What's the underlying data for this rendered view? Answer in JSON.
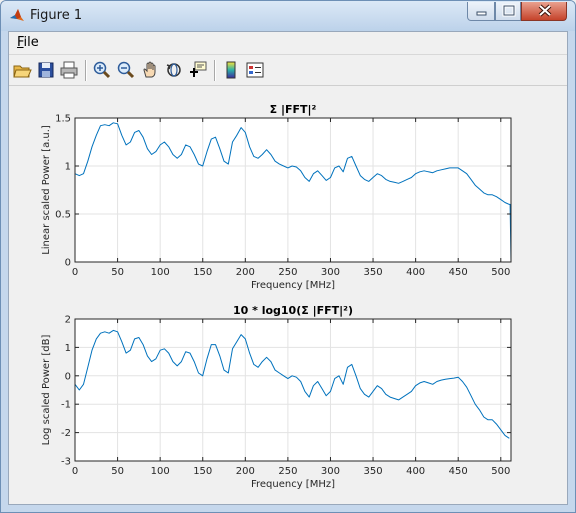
{
  "window": {
    "title": "Figure 1"
  },
  "menu": {
    "file_label": "File"
  },
  "toolbar": {
    "icons": [
      "open-file-icon",
      "save-icon",
      "print-icon",
      "zoom-in-icon",
      "zoom-out-icon",
      "pan-hand-icon",
      "rotate-3d-icon",
      "data-cursor-icon",
      "insert-colorbar-icon",
      "insert-legend-icon"
    ]
  },
  "colors": {
    "line": "#0072bd",
    "titlebar": "#c5d7ec",
    "close": "#c5432b"
  },
  "chart_data": [
    {
      "type": "line",
      "title": "Σ |FFT|²",
      "xlabel": "Frequency [MHz]",
      "ylabel": "Linear scaled Power [a.u.]",
      "xlim": [
        0,
        512
      ],
      "ylim": [
        0,
        1.5
      ],
      "xticks": [
        0,
        50,
        100,
        150,
        200,
        250,
        300,
        350,
        400,
        450,
        500
      ],
      "yticks": [
        0,
        0.5,
        1,
        1.5
      ],
      "ytick_labels": [
        "0",
        "0.5",
        "1",
        "1.5"
      ],
      "grid": true,
      "x": [
        0,
        5,
        10,
        15,
        20,
        25,
        30,
        35,
        40,
        45,
        50,
        55,
        60,
        65,
        70,
        75,
        80,
        85,
        90,
        95,
        100,
        105,
        110,
        115,
        120,
        125,
        130,
        135,
        140,
        145,
        150,
        155,
        160,
        165,
        170,
        175,
        180,
        185,
        190,
        195,
        200,
        205,
        210,
        215,
        220,
        225,
        230,
        235,
        240,
        245,
        250,
        255,
        260,
        265,
        270,
        275,
        280,
        285,
        290,
        295,
        300,
        305,
        310,
        315,
        320,
        325,
        330,
        335,
        340,
        345,
        350,
        355,
        360,
        365,
        370,
        375,
        380,
        385,
        390,
        395,
        400,
        405,
        410,
        415,
        420,
        425,
        430,
        435,
        440,
        445,
        450,
        455,
        460,
        465,
        470,
        475,
        480,
        485,
        490,
        495,
        500,
        505,
        510,
        511,
        512
      ],
      "values": [
        0.92,
        0.9,
        0.92,
        1.05,
        1.2,
        1.32,
        1.42,
        1.43,
        1.42,
        1.45,
        1.44,
        1.32,
        1.22,
        1.25,
        1.35,
        1.37,
        1.3,
        1.18,
        1.12,
        1.15,
        1.22,
        1.25,
        1.2,
        1.12,
        1.08,
        1.12,
        1.22,
        1.2,
        1.12,
        1.02,
        1.0,
        1.15,
        1.28,
        1.3,
        1.18,
        1.05,
        1.02,
        1.25,
        1.32,
        1.4,
        1.35,
        1.2,
        1.1,
        1.08,
        1.12,
        1.17,
        1.12,
        1.05,
        1.02,
        1.0,
        0.98,
        1.0,
        0.99,
        0.95,
        0.88,
        0.84,
        0.92,
        0.95,
        0.9,
        0.85,
        0.88,
        0.98,
        1.0,
        0.94,
        1.08,
        1.1,
        1.0,
        0.9,
        0.86,
        0.84,
        0.88,
        0.92,
        0.9,
        0.86,
        0.84,
        0.83,
        0.82,
        0.84,
        0.86,
        0.88,
        0.92,
        0.94,
        0.95,
        0.94,
        0.93,
        0.95,
        0.96,
        0.97,
        0.98,
        0.98,
        0.98,
        0.95,
        0.92,
        0.86,
        0.8,
        0.76,
        0.72,
        0.7,
        0.7,
        0.68,
        0.65,
        0.62,
        0.6,
        0.6,
        0.0
      ]
    },
    {
      "type": "line",
      "title": "10 * log10(Σ |FFT|²)",
      "xlabel": "Frequency [MHz]",
      "ylabel": "Log scaled Power [dB]",
      "xlim": [
        0,
        512
      ],
      "ylim": [
        -3,
        2
      ],
      "xticks": [
        0,
        50,
        100,
        150,
        200,
        250,
        300,
        350,
        400,
        450,
        500
      ],
      "yticks": [
        -3,
        -2,
        -1,
        0,
        1,
        2
      ],
      "ytick_labels": [
        "-3",
        "-2",
        "-1",
        "0",
        "1",
        "2"
      ],
      "grid": true,
      "x": [
        0,
        5,
        10,
        15,
        20,
        25,
        30,
        35,
        40,
        45,
        50,
        55,
        60,
        65,
        70,
        75,
        80,
        85,
        90,
        95,
        100,
        105,
        110,
        115,
        120,
        125,
        130,
        135,
        140,
        145,
        150,
        155,
        160,
        165,
        170,
        175,
        180,
        185,
        190,
        195,
        200,
        205,
        210,
        215,
        220,
        225,
        230,
        235,
        240,
        245,
        250,
        255,
        260,
        265,
        270,
        275,
        280,
        285,
        290,
        295,
        300,
        305,
        310,
        315,
        320,
        325,
        330,
        335,
        340,
        345,
        350,
        355,
        360,
        365,
        370,
        375,
        380,
        385,
        390,
        395,
        400,
        405,
        410,
        415,
        420,
        425,
        430,
        435,
        440,
        445,
        450,
        455,
        460,
        465,
        470,
        475,
        480,
        485,
        490,
        495,
        500,
        505,
        510
      ],
      "values": [
        -0.3,
        -0.5,
        -0.3,
        0.3,
        0.9,
        1.3,
        1.5,
        1.55,
        1.5,
        1.6,
        1.55,
        1.2,
        0.8,
        0.9,
        1.3,
        1.35,
        1.1,
        0.7,
        0.5,
        0.6,
        0.9,
        0.95,
        0.8,
        0.5,
        0.35,
        0.5,
        0.85,
        0.8,
        0.5,
        0.1,
        0.0,
        0.6,
        1.1,
        1.1,
        0.7,
        0.2,
        0.1,
        0.95,
        1.2,
        1.45,
        1.3,
        0.8,
        0.4,
        0.3,
        0.5,
        0.65,
        0.5,
        0.2,
        0.1,
        0.0,
        -0.1,
        0.0,
        -0.05,
        -0.2,
        -0.55,
        -0.75,
        -0.35,
        -0.2,
        -0.45,
        -0.7,
        -0.55,
        -0.1,
        0.0,
        -0.3,
        0.3,
        0.4,
        0.0,
        -0.45,
        -0.65,
        -0.75,
        -0.55,
        -0.35,
        -0.45,
        -0.65,
        -0.75,
        -0.8,
        -0.85,
        -0.75,
        -0.65,
        -0.55,
        -0.35,
        -0.25,
        -0.2,
        -0.25,
        -0.3,
        -0.2,
        -0.15,
        -0.12,
        -0.1,
        -0.08,
        -0.05,
        -0.2,
        -0.4,
        -0.7,
        -1.0,
        -1.2,
        -1.45,
        -1.55,
        -1.55,
        -1.7,
        -1.9,
        -2.1,
        -2.2
      ]
    }
  ]
}
